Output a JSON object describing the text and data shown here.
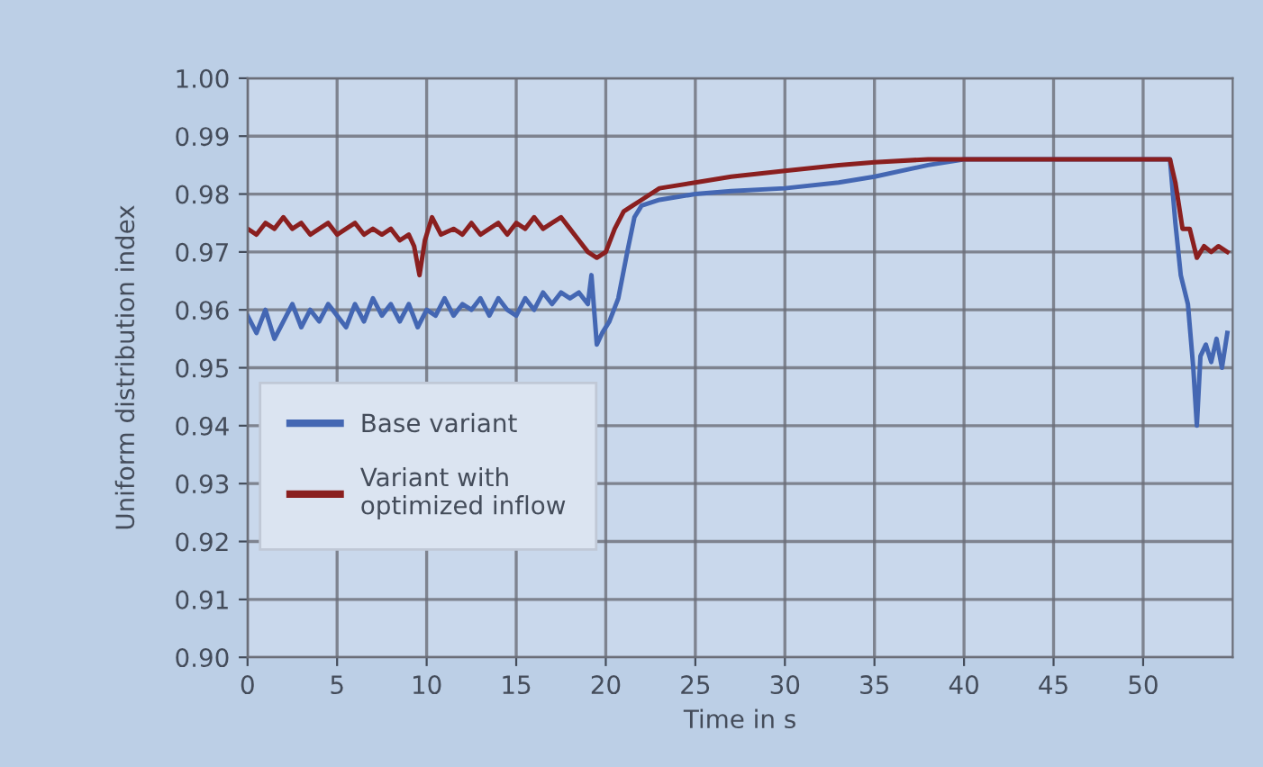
{
  "chart_data": {
    "type": "line",
    "xlabel": "Time in s",
    "ylabel": "Uniform distribution index",
    "xlim": [
      0,
      55
    ],
    "ylim": [
      0.9,
      1.0
    ],
    "xticks": [
      0,
      5,
      10,
      15,
      20,
      25,
      30,
      35,
      40,
      45,
      50
    ],
    "yticks": [
      {
        "value": 0.9,
        "label": "0.90"
      },
      {
        "value": 0.91,
        "label": "0.91"
      },
      {
        "value": 0.92,
        "label": "0.92"
      },
      {
        "value": 0.93,
        "label": "0.93"
      },
      {
        "value": 0.94,
        "label": "0.94"
      },
      {
        "value": 0.95,
        "label": "0.95"
      },
      {
        "value": 0.96,
        "label": "0.96"
      },
      {
        "value": 0.97,
        "label": "0.97"
      },
      {
        "value": 0.98,
        "label": "0.98"
      },
      {
        "value": 0.99,
        "label": "0.99"
      },
      {
        "value": 1.0,
        "label": "1.00"
      }
    ],
    "grid": true,
    "legend": "left",
    "marker": "none",
    "line_style": "solid",
    "series": [
      {
        "name": "Base variant",
        "color": "#4467b3",
        "x": [
          0,
          0.5,
          1,
          1.5,
          2,
          2.5,
          3,
          3.5,
          4,
          4.5,
          5,
          5.5,
          6,
          6.5,
          7,
          7.5,
          8,
          8.5,
          9,
          9.5,
          10,
          10.5,
          11,
          11.5,
          12,
          12.5,
          13,
          13.5,
          14,
          14.5,
          15,
          15.5,
          16,
          16.5,
          17,
          17.5,
          18,
          18.5,
          19,
          19.2,
          19.5,
          19.8,
          20.2,
          20.7,
          21.2,
          21.6,
          22,
          23,
          25,
          27,
          30,
          33,
          35,
          38,
          40,
          45,
          51.5,
          51.8,
          52.1,
          52.5,
          52.8,
          53,
          53.2,
          53.5,
          53.8,
          54.1,
          54.4,
          54.7
        ],
        "values": [
          0.959,
          0.956,
          0.96,
          0.955,
          0.958,
          0.961,
          0.957,
          0.96,
          0.958,
          0.961,
          0.959,
          0.957,
          0.961,
          0.958,
          0.962,
          0.959,
          0.961,
          0.958,
          0.961,
          0.957,
          0.96,
          0.959,
          0.962,
          0.959,
          0.961,
          0.96,
          0.962,
          0.959,
          0.962,
          0.96,
          0.959,
          0.962,
          0.96,
          0.963,
          0.961,
          0.963,
          0.962,
          0.963,
          0.961,
          0.966,
          0.954,
          0.956,
          0.958,
          0.962,
          0.97,
          0.976,
          0.978,
          0.979,
          0.98,
          0.9805,
          0.981,
          0.982,
          0.983,
          0.985,
          0.986,
          0.986,
          0.986,
          0.975,
          0.966,
          0.961,
          0.95,
          0.94,
          0.952,
          0.954,
          0.951,
          0.955,
          0.95,
          0.956
        ]
      },
      {
        "name": "Variant with optimized inflow",
        "color": "#8a1f1f",
        "x": [
          0,
          0.5,
          1,
          1.5,
          2,
          2.5,
          3,
          3.5,
          4,
          4.5,
          5,
          5.5,
          6,
          6.5,
          7,
          7.5,
          8,
          8.5,
          9,
          9.3,
          9.6,
          9.9,
          10.3,
          10.8,
          11.5,
          12,
          12.5,
          13,
          13.5,
          14,
          14.5,
          15,
          15.5,
          16,
          16.5,
          17,
          17.5,
          18,
          18.5,
          19,
          19.5,
          20,
          20.5,
          21,
          21.5,
          22,
          23,
          25,
          27,
          30,
          33,
          35,
          38,
          40,
          45,
          51.5,
          51.8,
          52.2,
          52.6,
          53,
          53.4,
          53.8,
          54.2,
          54.7
        ],
        "values": [
          0.974,
          0.973,
          0.975,
          0.974,
          0.976,
          0.974,
          0.975,
          0.973,
          0.974,
          0.975,
          0.973,
          0.974,
          0.975,
          0.973,
          0.974,
          0.973,
          0.974,
          0.972,
          0.973,
          0.971,
          0.966,
          0.972,
          0.976,
          0.973,
          0.974,
          0.973,
          0.975,
          0.973,
          0.974,
          0.975,
          0.973,
          0.975,
          0.974,
          0.976,
          0.974,
          0.975,
          0.976,
          0.974,
          0.972,
          0.97,
          0.969,
          0.97,
          0.974,
          0.977,
          0.978,
          0.979,
          0.981,
          0.982,
          0.983,
          0.984,
          0.985,
          0.9855,
          0.986,
          0.986,
          0.986,
          0.986,
          0.982,
          0.974,
          0.974,
          0.969,
          0.971,
          0.97,
          0.971,
          0.97
        ]
      }
    ]
  }
}
